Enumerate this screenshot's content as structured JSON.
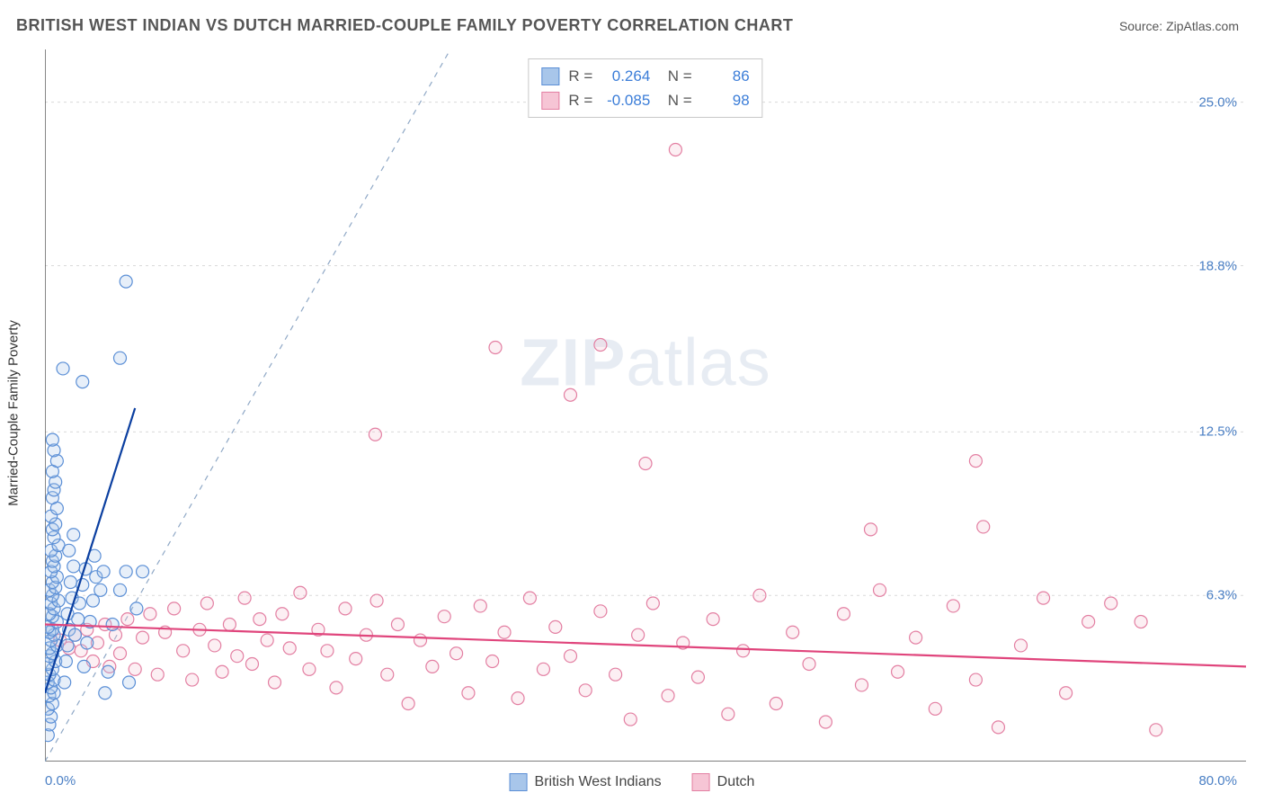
{
  "header": {
    "title": "BRITISH WEST INDIAN VS DUTCH MARRIED-COUPLE FAMILY POVERTY CORRELATION CHART",
    "source_prefix": "Source: ",
    "source_name": "ZipAtlas.com"
  },
  "watermark": {
    "zip": "ZIP",
    "atlas": "atlas"
  },
  "chart": {
    "type": "scatter",
    "ylabel": "Married-Couple Family Poverty",
    "background_color": "#ffffff",
    "axis_color": "#555555",
    "grid_color": "#d9d9d9",
    "tick_label_color": "#4a7fc4",
    "xlim": [
      0,
      80
    ],
    "ylim": [
      0,
      27
    ],
    "x_axis_labels": {
      "min": "0.0%",
      "max": "80.0%"
    },
    "y_ticks": [
      {
        "value": 6.3,
        "label": "6.3%"
      },
      {
        "value": 12.5,
        "label": "12.5%"
      },
      {
        "value": 18.8,
        "label": "18.8%"
      },
      {
        "value": 25.0,
        "label": "25.0%"
      }
    ],
    "x_tick_positions": [
      10,
      20,
      30,
      40,
      50,
      60,
      70
    ],
    "marker_radius": 7,
    "marker_stroke_width": 1.2,
    "marker_fill_opacity": 0.28,
    "trend_line_width": 2.2,
    "diagonal_dash": "6 6",
    "diagonal_color": "#8fa8c6",
    "series": {
      "bwi": {
        "label": "British West Indians",
        "color_stroke": "#5b8fd6",
        "color_fill": "#a8c6ea",
        "trend_color": "#0b3fa0",
        "R": "0.264",
        "N": "86",
        "trend": {
          "x1": 0,
          "y1": 2.6,
          "x2": 6,
          "y2": 13.4
        },
        "points": [
          [
            0.2,
            1.0
          ],
          [
            0.3,
            1.4
          ],
          [
            0.4,
            1.7
          ],
          [
            0.2,
            2.0
          ],
          [
            0.5,
            2.2
          ],
          [
            0.3,
            2.5
          ],
          [
            0.6,
            2.6
          ],
          [
            0.4,
            2.8
          ],
          [
            0.2,
            3.0
          ],
          [
            0.6,
            3.1
          ],
          [
            0.3,
            3.3
          ],
          [
            0.5,
            3.5
          ],
          [
            0.2,
            3.7
          ],
          [
            0.7,
            3.8
          ],
          [
            0.3,
            4.0
          ],
          [
            0.5,
            4.1
          ],
          [
            0.3,
            4.3
          ],
          [
            0.8,
            4.4
          ],
          [
            0.4,
            4.6
          ],
          [
            0.6,
            4.8
          ],
          [
            0.3,
            4.9
          ],
          [
            0.5,
            5.0
          ],
          [
            0.2,
            5.1
          ],
          [
            0.8,
            5.3
          ],
          [
            0.5,
            5.5
          ],
          [
            0.3,
            5.6
          ],
          [
            0.6,
            5.8
          ],
          [
            0.4,
            6.0
          ],
          [
            0.9,
            6.1
          ],
          [
            0.5,
            6.3
          ],
          [
            0.3,
            6.5
          ],
          [
            0.7,
            6.6
          ],
          [
            0.5,
            6.8
          ],
          [
            0.8,
            7.0
          ],
          [
            0.4,
            7.2
          ],
          [
            0.6,
            7.4
          ],
          [
            0.5,
            7.6
          ],
          [
            0.7,
            7.8
          ],
          [
            0.4,
            8.0
          ],
          [
            0.9,
            8.2
          ],
          [
            0.6,
            8.5
          ],
          [
            0.5,
            8.8
          ],
          [
            0.7,
            9.0
          ],
          [
            0.4,
            9.3
          ],
          [
            0.8,
            9.6
          ],
          [
            0.5,
            10.0
          ],
          [
            0.6,
            10.3
          ],
          [
            0.7,
            10.6
          ],
          [
            0.5,
            11.0
          ],
          [
            0.8,
            11.4
          ],
          [
            0.6,
            11.8
          ],
          [
            0.5,
            12.2
          ],
          [
            1.3,
            3.0
          ],
          [
            1.4,
            3.8
          ],
          [
            1.5,
            4.4
          ],
          [
            1.6,
            5.0
          ],
          [
            1.5,
            5.6
          ],
          [
            1.8,
            6.2
          ],
          [
            1.7,
            6.8
          ],
          [
            1.9,
            7.4
          ],
          [
            1.6,
            8.0
          ],
          [
            1.9,
            8.6
          ],
          [
            2.0,
            4.8
          ],
          [
            2.2,
            5.4
          ],
          [
            2.3,
            6.0
          ],
          [
            2.5,
            6.7
          ],
          [
            2.7,
            7.3
          ],
          [
            2.6,
            3.6
          ],
          [
            2.8,
            4.5
          ],
          [
            3.0,
            5.3
          ],
          [
            3.2,
            6.1
          ],
          [
            3.4,
            7.0
          ],
          [
            3.3,
            7.8
          ],
          [
            3.7,
            6.5
          ],
          [
            3.9,
            7.2
          ],
          [
            4.0,
            2.6
          ],
          [
            4.2,
            3.4
          ],
          [
            4.5,
            5.2
          ],
          [
            5.0,
            6.5
          ],
          [
            5.4,
            7.2
          ],
          [
            5.6,
            3.0
          ],
          [
            6.1,
            5.8
          ],
          [
            6.5,
            7.2
          ],
          [
            2.5,
            14.4
          ],
          [
            5.0,
            15.3
          ],
          [
            5.4,
            18.2
          ],
          [
            1.2,
            14.9
          ]
        ]
      },
      "dutch": {
        "label": "Dutch",
        "color_stroke": "#e37fa2",
        "color_fill": "#f6c5d5",
        "trend_color": "#e0457c",
        "R": "-0.085",
        "N": "98",
        "trend": {
          "x1": 0,
          "y1": 5.2,
          "x2": 80,
          "y2": 3.6
        },
        "points": [
          [
            1.0,
            4.6
          ],
          [
            1.6,
            4.3
          ],
          [
            2.0,
            4.8
          ],
          [
            2.4,
            4.2
          ],
          [
            2.8,
            5.0
          ],
          [
            3.2,
            3.8
          ],
          [
            3.5,
            4.5
          ],
          [
            4.0,
            5.2
          ],
          [
            4.3,
            3.6
          ],
          [
            4.7,
            4.8
          ],
          [
            5.0,
            4.1
          ],
          [
            5.5,
            5.4
          ],
          [
            6.0,
            3.5
          ],
          [
            6.5,
            4.7
          ],
          [
            7.0,
            5.6
          ],
          [
            7.5,
            3.3
          ],
          [
            8.0,
            4.9
          ],
          [
            8.6,
            5.8
          ],
          [
            9.2,
            4.2
          ],
          [
            9.8,
            3.1
          ],
          [
            10.3,
            5.0
          ],
          [
            10.8,
            6.0
          ],
          [
            11.3,
            4.4
          ],
          [
            11.8,
            3.4
          ],
          [
            12.3,
            5.2
          ],
          [
            12.8,
            4.0
          ],
          [
            13.3,
            6.2
          ],
          [
            13.8,
            3.7
          ],
          [
            14.3,
            5.4
          ],
          [
            14.8,
            4.6
          ],
          [
            15.3,
            3.0
          ],
          [
            15.8,
            5.6
          ],
          [
            16.3,
            4.3
          ],
          [
            17.0,
            6.4
          ],
          [
            17.6,
            3.5
          ],
          [
            18.2,
            5.0
          ],
          [
            18.8,
            4.2
          ],
          [
            19.4,
            2.8
          ],
          [
            20.0,
            5.8
          ],
          [
            20.7,
            3.9
          ],
          [
            21.4,
            4.8
          ],
          [
            22.1,
            6.1
          ],
          [
            22.8,
            3.3
          ],
          [
            23.5,
            5.2
          ],
          [
            24.2,
            2.2
          ],
          [
            25.0,
            4.6
          ],
          [
            25.8,
            3.6
          ],
          [
            26.6,
            5.5
          ],
          [
            27.4,
            4.1
          ],
          [
            28.2,
            2.6
          ],
          [
            29.0,
            5.9
          ],
          [
            29.8,
            3.8
          ],
          [
            30.6,
            4.9
          ],
          [
            31.5,
            2.4
          ],
          [
            32.3,
            6.2
          ],
          [
            33.2,
            3.5
          ],
          [
            34.0,
            5.1
          ],
          [
            35.0,
            4.0
          ],
          [
            36.0,
            2.7
          ],
          [
            37.0,
            5.7
          ],
          [
            38.0,
            3.3
          ],
          [
            39.0,
            1.6
          ],
          [
            39.5,
            4.8
          ],
          [
            40.5,
            6.0
          ],
          [
            41.5,
            2.5
          ],
          [
            42.5,
            4.5
          ],
          [
            43.5,
            3.2
          ],
          [
            44.5,
            5.4
          ],
          [
            45.5,
            1.8
          ],
          [
            46.5,
            4.2
          ],
          [
            47.6,
            6.3
          ],
          [
            48.7,
            2.2
          ],
          [
            49.8,
            4.9
          ],
          [
            50.9,
            3.7
          ],
          [
            52.0,
            1.5
          ],
          [
            53.2,
            5.6
          ],
          [
            54.4,
            2.9
          ],
          [
            55.6,
            6.5
          ],
          [
            56.8,
            3.4
          ],
          [
            58.0,
            4.7
          ],
          [
            59.3,
            2.0
          ],
          [
            60.5,
            5.9
          ],
          [
            62.0,
            3.1
          ],
          [
            63.5,
            1.3
          ],
          [
            65.0,
            4.4
          ],
          [
            66.5,
            6.2
          ],
          [
            68.0,
            2.6
          ],
          [
            69.5,
            5.3
          ],
          [
            71.0,
            6.0
          ],
          [
            73.0,
            5.3
          ],
          [
            74.0,
            1.2
          ],
          [
            22.0,
            12.4
          ],
          [
            30.0,
            15.7
          ],
          [
            35.0,
            13.9
          ],
          [
            37.0,
            15.8
          ],
          [
            40.0,
            11.3
          ],
          [
            42.0,
            23.2
          ],
          [
            55.0,
            8.8
          ],
          [
            62.0,
            11.4
          ],
          [
            62.5,
            8.9
          ]
        ]
      }
    }
  },
  "bottom_legend": {
    "items": [
      {
        "key": "bwi"
      },
      {
        "key": "dutch"
      }
    ]
  }
}
